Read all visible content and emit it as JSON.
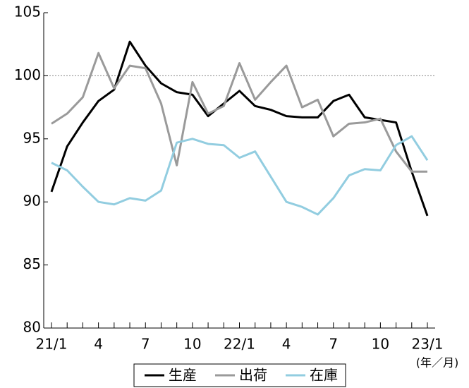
{
  "chart_data": {
    "type": "line",
    "x_label": "(年／月)",
    "categories": [
      "21/1",
      null,
      null,
      "4",
      null,
      null,
      "7",
      null,
      null,
      "10",
      null,
      null,
      "22/1",
      null,
      null,
      "4",
      null,
      null,
      "7",
      null,
      null,
      "10",
      null,
      null,
      "23/1"
    ],
    "series": [
      {
        "name": "生産",
        "color": "#000000",
        "values": [
          90.8,
          94.4,
          96.3,
          98.0,
          98.9,
          102.7,
          100.8,
          99.4,
          98.7,
          98.5,
          96.8,
          97.8,
          98.8,
          97.6,
          97.3,
          96.8,
          96.7,
          96.7,
          98.0,
          98.5,
          96.7,
          96.5,
          96.3,
          92.4,
          88.9
        ]
      },
      {
        "name": "出荷",
        "color": "#9a9a9a",
        "values": [
          96.2,
          97.0,
          98.3,
          101.8,
          99.0,
          100.8,
          100.6,
          97.8,
          92.9,
          99.5,
          97.0,
          97.6,
          101.0,
          98.1,
          99.5,
          100.8,
          97.5,
          98.1,
          95.2,
          96.2,
          96.3,
          96.6,
          94.0,
          92.4,
          92.4
        ]
      },
      {
        "name": "在庫",
        "color": "#92cde0",
        "values": [
          93.1,
          92.5,
          91.2,
          90.0,
          89.8,
          90.3,
          90.1,
          90.9,
          94.7,
          95.0,
          94.6,
          94.5,
          93.5,
          94.0,
          92.0,
          90.0,
          89.6,
          89.0,
          90.3,
          92.1,
          92.6,
          92.5,
          94.5,
          95.2,
          93.3
        ]
      }
    ],
    "ylim": [
      80,
      105
    ],
    "yticks": [
      80,
      85,
      90,
      95,
      100,
      105
    ],
    "reference_line": 100
  }
}
